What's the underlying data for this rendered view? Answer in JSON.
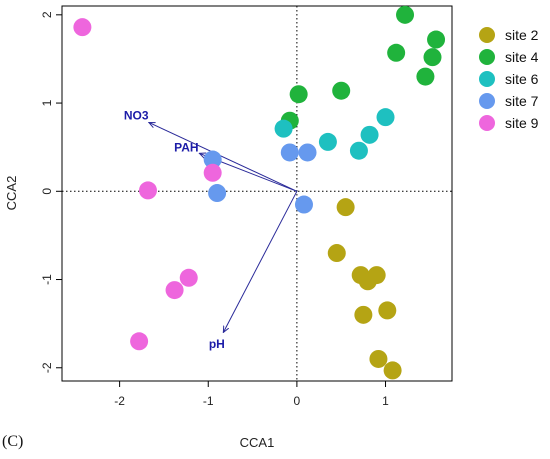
{
  "panel_label": "(C)",
  "chart_data": {
    "type": "scatter",
    "xlabel": "CCA1",
    "ylabel": "CCA2",
    "xlim": [
      -2.65,
      1.75
    ],
    "ylim": [
      -2.15,
      2.1
    ],
    "xticks": [
      -2,
      -1,
      0,
      1
    ],
    "yticks": [
      -2,
      -1,
      0,
      1,
      2
    ],
    "reference_lines": {
      "x": 0,
      "y": 0,
      "style": "dotted"
    },
    "series": [
      {
        "name": "site 2",
        "color": "#b5a414",
        "points": [
          [
            0.55,
            -0.18
          ],
          [
            0.45,
            -0.7
          ],
          [
            0.72,
            -0.95
          ],
          [
            0.9,
            -0.95
          ],
          [
            0.8,
            -1.02
          ],
          [
            0.75,
            -1.4
          ],
          [
            1.02,
            -1.35
          ],
          [
            0.92,
            -1.9
          ],
          [
            1.08,
            -2.03
          ]
        ]
      },
      {
        "name": "site 4",
        "color": "#20b33c",
        "points": [
          [
            1.22,
            2.0
          ],
          [
            1.57,
            1.72
          ],
          [
            1.12,
            1.57
          ],
          [
            1.53,
            1.52
          ],
          [
            1.45,
            1.3
          ],
          [
            0.5,
            1.14
          ],
          [
            0.02,
            1.1
          ],
          [
            -0.08,
            0.8
          ]
        ]
      },
      {
        "name": "site 6",
        "color": "#1ec0c0",
        "points": [
          [
            1.0,
            0.84
          ],
          [
            0.82,
            0.64
          ],
          [
            0.7,
            0.46
          ],
          [
            0.35,
            0.56
          ],
          [
            -0.15,
            0.71
          ]
        ]
      },
      {
        "name": "site 7",
        "color": "#6699ee",
        "points": [
          [
            -0.95,
            0.36
          ],
          [
            -0.08,
            0.44
          ],
          [
            0.12,
            0.44
          ],
          [
            -0.9,
            -0.02
          ],
          [
            0.08,
            -0.15
          ]
        ]
      },
      {
        "name": "site 9",
        "color": "#ee66dd",
        "points": [
          [
            -2.42,
            1.86
          ],
          [
            -1.68,
            0.01
          ],
          [
            -0.95,
            0.21
          ],
          [
            -1.22,
            -0.98
          ],
          [
            -1.38,
            -1.12
          ],
          [
            -1.78,
            -1.7
          ]
        ]
      }
    ],
    "env_vectors": [
      {
        "name": "NO3",
        "x": -1.67,
        "y": 0.78
      },
      {
        "name": "PAH",
        "x": -1.1,
        "y": 0.43
      },
      {
        "name": "pH",
        "x": -0.83,
        "y": -1.6
      }
    ],
    "arrow_color": "#2a2a99",
    "legend": {
      "position": "right"
    }
  }
}
